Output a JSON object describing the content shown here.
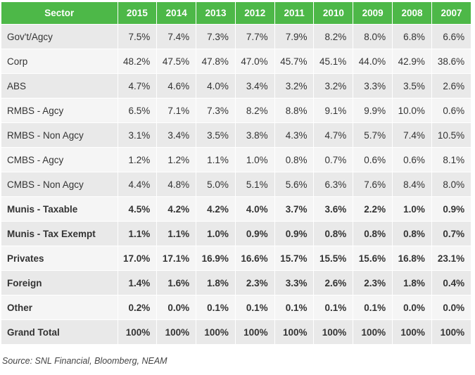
{
  "chart_data": {
    "type": "table",
    "header_label": "Sector",
    "columns": [
      "2015",
      "2014",
      "2013",
      "2012",
      "2011",
      "2010",
      "2009",
      "2008",
      "2007"
    ],
    "rows": [
      {
        "label": "Gov't/Agcy",
        "bold": false,
        "values": [
          "7.5%",
          "7.4%",
          "7.3%",
          "7.7%",
          "7.9%",
          "8.2%",
          "8.0%",
          "6.8%",
          "6.6%"
        ]
      },
      {
        "label": "Corp",
        "bold": false,
        "values": [
          "48.2%",
          "47.5%",
          "47.8%",
          "47.0%",
          "45.7%",
          "45.1%",
          "44.0%",
          "42.9%",
          "38.6%"
        ]
      },
      {
        "label": "ABS",
        "bold": false,
        "values": [
          "4.7%",
          "4.6%",
          "4.0%",
          "3.4%",
          "3.2%",
          "3.2%",
          "3.3%",
          "3.5%",
          "2.6%"
        ]
      },
      {
        "label": "RMBS - Agcy",
        "bold": false,
        "values": [
          "6.5%",
          "7.1%",
          "7.3%",
          "8.2%",
          "8.8%",
          "9.1%",
          "9.9%",
          "10.0%",
          "0.6%"
        ]
      },
      {
        "label": "RMBS - Non Agcy",
        "bold": false,
        "values": [
          "3.1%",
          "3.4%",
          "3.5%",
          "3.8%",
          "4.3%",
          "4.7%",
          "5.7%",
          "7.4%",
          "10.5%"
        ]
      },
      {
        "label": "CMBS - Agcy",
        "bold": false,
        "values": [
          "1.2%",
          "1.2%",
          "1.1%",
          "1.0%",
          "0.8%",
          "0.7%",
          "0.6%",
          "0.6%",
          "8.1%"
        ]
      },
      {
        "label": "CMBS - Non Agcy",
        "bold": false,
        "values": [
          "4.4%",
          "4.8%",
          "5.0%",
          "5.1%",
          "5.6%",
          "6.3%",
          "7.6%",
          "8.4%",
          "8.0%"
        ]
      },
      {
        "label": "Munis - Taxable",
        "bold": true,
        "values": [
          "4.5%",
          "4.2%",
          "4.2%",
          "4.0%",
          "3.7%",
          "3.6%",
          "2.2%",
          "1.0%",
          "0.9%"
        ]
      },
      {
        "label": "Munis - Tax Exempt",
        "bold": true,
        "values": [
          "1.1%",
          "1.1%",
          "1.0%",
          "0.9%",
          "0.9%",
          "0.8%",
          "0.8%",
          "0.8%",
          "0.7%"
        ]
      },
      {
        "label": "Privates",
        "bold": true,
        "values": [
          "17.0%",
          "17.1%",
          "16.9%",
          "16.6%",
          "15.7%",
          "15.5%",
          "15.6%",
          "16.8%",
          "23.1%"
        ]
      },
      {
        "label": "Foreign",
        "bold": true,
        "values": [
          "1.4%",
          "1.6%",
          "1.8%",
          "2.3%",
          "3.3%",
          "2.6%",
          "2.3%",
          "1.8%",
          "0.4%"
        ]
      },
      {
        "label": "Other",
        "bold": true,
        "values": [
          "0.2%",
          "0.0%",
          "0.1%",
          "0.1%",
          "0.1%",
          "0.1%",
          "0.1%",
          "0.0%",
          "0.0%"
        ]
      },
      {
        "label": "Grand Total",
        "bold": true,
        "values": [
          "100%",
          "100%",
          "100%",
          "100%",
          "100%",
          "100%",
          "100%",
          "100%",
          "100%"
        ]
      }
    ],
    "source": "Source: SNL Financial, Bloomberg, NEAM",
    "colors": {
      "header_bg": "#4db848",
      "header_text": "#ffffff",
      "row_odd": "#e9e9e9",
      "row_even": "#f5f5f5"
    }
  }
}
